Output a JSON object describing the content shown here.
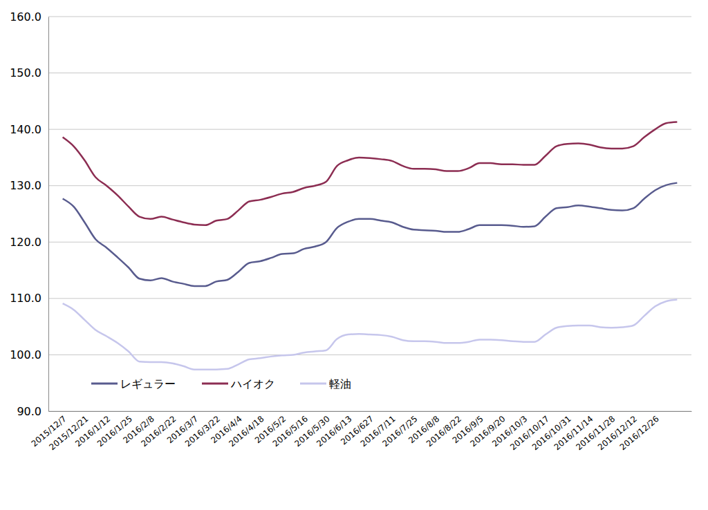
{
  "chart_data": {
    "type": "line",
    "categories": [
      "2015/12/7",
      null,
      "2015/12/21",
      null,
      "2016/1/12",
      null,
      "2016/1/25",
      null,
      "2016/2/8",
      null,
      "2016/2/22",
      null,
      "2016/3/7",
      null,
      "2016/3/22",
      null,
      "2016/4/4",
      null,
      "2016/4/18",
      null,
      "2016/5/2",
      null,
      "2016/5/16",
      null,
      "2016/5/30",
      null,
      "2016/6/13",
      null,
      "2016/627",
      null,
      "2016/7/11",
      null,
      "2016/7/25",
      null,
      "2016/8/8",
      null,
      "2016/8/22",
      null,
      "2016/9/5",
      null,
      "2016/9/20",
      null,
      "2016/10/3",
      null,
      "2016/10/17",
      null,
      "2016/10/31",
      null,
      "2016/11/14",
      null,
      "2016/11/28",
      null,
      "2016/12/12",
      null,
      "2016/12/26",
      null,
      null
    ],
    "series": [
      {
        "name": "レギュラー",
        "color": "#585b8e",
        "values": [
          127.7,
          126.3,
          123.5,
          120.5,
          119.0,
          117.3,
          115.5,
          113.5,
          113.2,
          113.6,
          113.0,
          112.6,
          112.2,
          112.2,
          113.0,
          113.3,
          114.7,
          116.3,
          116.6,
          117.2,
          117.9,
          118.0,
          118.8,
          119.2,
          120.0,
          122.5,
          123.6,
          124.1,
          124.1,
          123.8,
          123.5,
          122.7,
          122.2,
          122.1,
          122.0,
          121.8,
          121.8,
          122.3,
          123.0,
          123.0,
          123.0,
          122.9,
          122.7,
          122.8,
          124.5,
          126.0,
          126.2,
          126.5,
          126.3,
          126.0,
          125.7,
          125.6,
          126.0,
          127.7,
          129.2,
          130.1,
          130.5
        ]
      },
      {
        "name": "ハイオク",
        "color": "#8c2d52",
        "values": [
          138.6,
          137.0,
          134.5,
          131.5,
          130.0,
          128.3,
          126.3,
          124.5,
          124.1,
          124.5,
          124.0,
          123.5,
          123.1,
          123.0,
          123.8,
          124.1,
          125.6,
          127.2,
          127.5,
          128.0,
          128.6,
          128.9,
          129.6,
          130.0,
          130.7,
          133.5,
          134.5,
          135.0,
          134.9,
          134.7,
          134.4,
          133.5,
          133.0,
          133.0,
          132.9,
          132.6,
          132.6,
          133.1,
          134.0,
          134.0,
          133.8,
          133.8,
          133.7,
          133.7,
          135.3,
          137.0,
          137.4,
          137.5,
          137.3,
          136.8,
          136.6,
          136.6,
          137.0,
          138.6,
          140.0,
          141.1,
          141.3
        ]
      },
      {
        "name": "軽油",
        "color": "#c6c6ec",
        "values": [
          109.1,
          108.0,
          106.2,
          104.4,
          103.3,
          102.1,
          100.6,
          98.8,
          98.7,
          98.7,
          98.5,
          98.0,
          97.4,
          97.4,
          97.4,
          97.5,
          98.3,
          99.2,
          99.4,
          99.7,
          99.9,
          100.0,
          100.4,
          100.6,
          100.8,
          102.8,
          103.6,
          103.7,
          103.6,
          103.5,
          103.2,
          102.6,
          102.4,
          102.4,
          102.3,
          102.1,
          102.1,
          102.3,
          102.7,
          102.7,
          102.6,
          102.4,
          102.3,
          102.3,
          103.6,
          104.8,
          105.1,
          105.2,
          105.2,
          104.9,
          104.8,
          104.9,
          105.2,
          106.9,
          108.6,
          109.5,
          109.8
        ]
      }
    ],
    "ylim": [
      90,
      160
    ],
    "yticks": [
      {
        "value": 90,
        "label": "90.0"
      },
      {
        "value": 100,
        "label": "100.0"
      },
      {
        "value": 110,
        "label": "110.0"
      },
      {
        "value": 120,
        "label": "120.0"
      },
      {
        "value": 130,
        "label": "130.0"
      },
      {
        "value": 140,
        "label": "140.0"
      },
      {
        "value": 150,
        "label": "150.0"
      },
      {
        "value": 160,
        "label": "160.0"
      }
    ],
    "grid": true,
    "legend": "lower left"
  }
}
